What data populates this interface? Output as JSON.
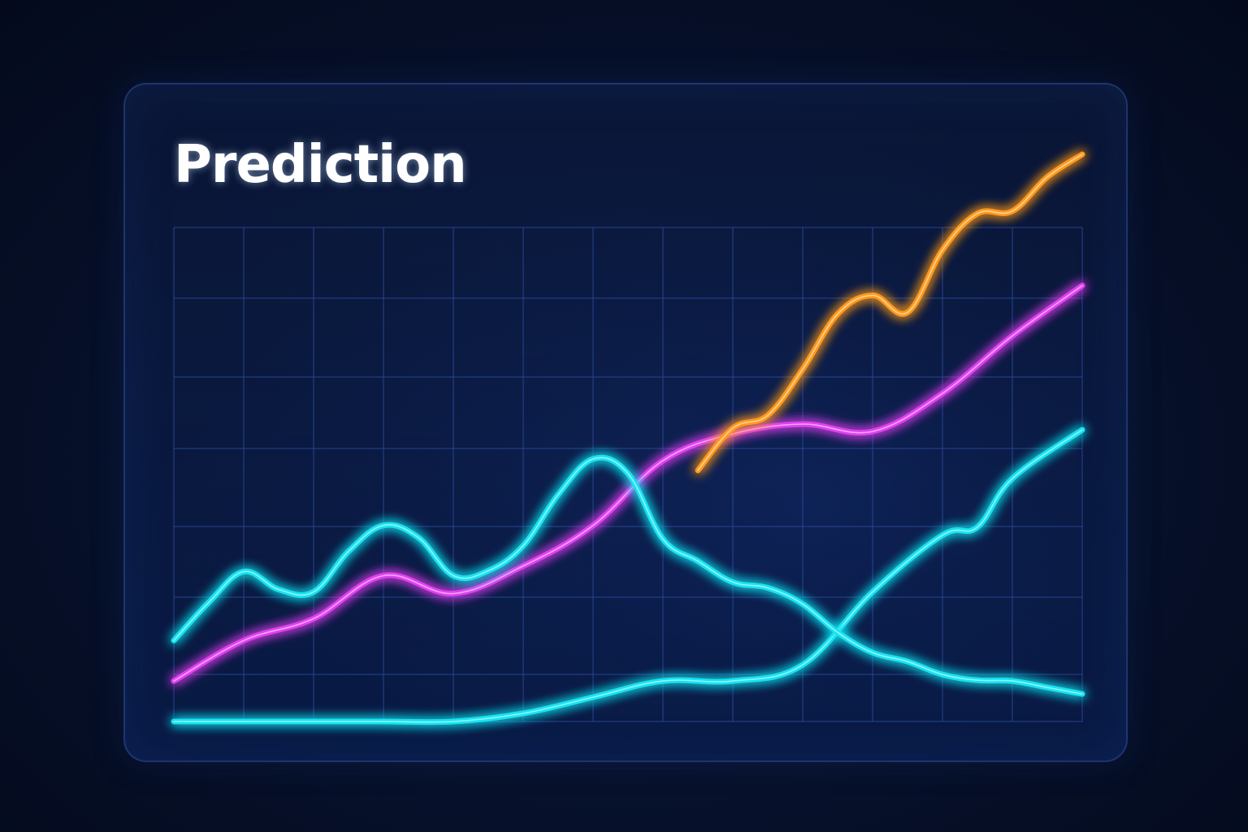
{
  "chart_data": {
    "type": "line",
    "title": "Prediction",
    "xlabel": "",
    "ylabel": "",
    "grid": true,
    "legend": "none",
    "xlim": [
      0,
      13
    ],
    "ylim": [
      0,
      7
    ],
    "series": [
      {
        "color": "#19e3f0",
        "x": [
          0,
          0.5,
          1,
          1.5,
          2,
          2.5,
          3,
          3.5,
          4,
          4.5,
          5,
          5.5,
          6,
          6.5,
          7,
          7.5,
          8,
          8.5,
          9,
          9.5,
          10,
          10.5,
          11,
          11.5,
          12,
          12.5,
          13
        ],
        "values": [
          1.0,
          1.47,
          1.85,
          1.63,
          1.6,
          2.1,
          2.42,
          2.27,
          1.8,
          1.86,
          2.17,
          2.8,
          3.24,
          3.06,
          2.25,
          1.98,
          1.72,
          1.65,
          1.45,
          1.1,
          0.85,
          0.74,
          0.58,
          0.51,
          0.5,
          0.42,
          0.34
        ]
      },
      {
        "color": "#e040f0",
        "x": [
          0,
          1,
          2,
          3,
          4,
          5,
          6,
          7,
          8,
          9,
          10,
          11,
          12,
          13
        ],
        "values": [
          0.5,
          1.0,
          1.27,
          1.8,
          1.58,
          1.92,
          2.42,
          3.22,
          3.55,
          3.67,
          3.58,
          4.05,
          4.76,
          5.38
        ]
      },
      {
        "color": "#ff9a1f",
        "x": [
          7.5,
          8,
          8.5,
          9,
          9.5,
          10,
          10.5,
          11,
          11.5,
          12,
          12.5,
          13
        ],
        "values": [
          3.1,
          3.62,
          3.78,
          4.35,
          5.03,
          5.26,
          5.05,
          5.82,
          6.27,
          6.3,
          6.72,
          7.0
        ]
      },
      {
        "color": "#19e3f0",
        "x": [
          0,
          1,
          2,
          3,
          4,
          5,
          6,
          7,
          8,
          9,
          10,
          11,
          11.5,
          12,
          13
        ],
        "values": [
          0.0,
          0.0,
          0.0,
          0.0,
          0.0,
          0.1,
          0.3,
          0.5,
          0.5,
          0.7,
          1.6,
          2.3,
          2.4,
          3.0,
          3.6
        ]
      }
    ]
  }
}
